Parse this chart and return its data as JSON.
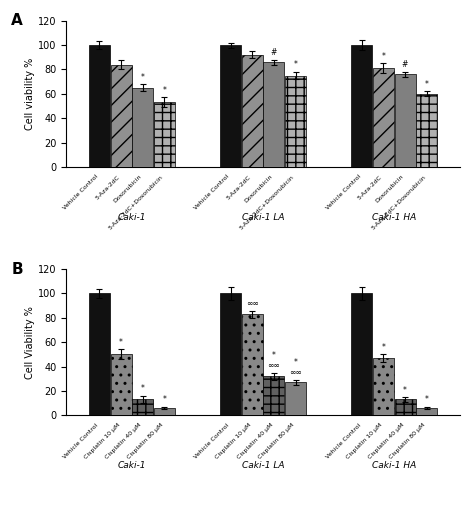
{
  "panel_A": {
    "title": "A",
    "ylabel": "Cell viability %",
    "ylim": [
      0,
      120
    ],
    "yticks": [
      0,
      20,
      40,
      60,
      80,
      100,
      120
    ],
    "groups": [
      "Caki-1",
      "Caki-1 LA",
      "Caki-1 HA"
    ],
    "categories": [
      "Vehicle Control",
      "5-Aza-2dC",
      "Doxorubicin",
      "5-Aza-2dC+Doxorubicin"
    ],
    "values": [
      [
        100,
        84,
        65,
        53
      ],
      [
        100,
        92,
        86,
        75
      ],
      [
        100,
        81,
        76,
        60
      ]
    ],
    "errors": [
      [
        3,
        4,
        3,
        4
      ],
      [
        2,
        3,
        2,
        3
      ],
      [
        4,
        4,
        2,
        2
      ]
    ],
    "significance": [
      [
        "",
        "",
        "*",
        "*"
      ],
      [
        "",
        "",
        "#",
        "*"
      ],
      [
        "",
        "*",
        "#",
        "*"
      ]
    ],
    "bar_colors": [
      "#111111",
      "#909090",
      "#808080",
      "#b0b0b0"
    ],
    "bar_hatches": [
      "",
      "//",
      "",
      "++"
    ],
    "bar_edge_colors": [
      "#111111",
      "#111111",
      "#111111",
      "#111111"
    ]
  },
  "panel_B": {
    "title": "B",
    "ylabel": "Cell Viability %",
    "ylim": [
      0,
      120
    ],
    "yticks": [
      0,
      20,
      40,
      60,
      80,
      100,
      120
    ],
    "groups": [
      "Caki-1",
      "Caki-1 LA",
      "Caki-1 HA"
    ],
    "categories": [
      "Vehicle Control",
      "Cisplatin 10 μM",
      "Cisplatin 40 μM",
      "Cisplatin 80 μM"
    ],
    "values": [
      [
        100,
        50,
        13,
        6
      ],
      [
        100,
        83,
        32,
        27
      ],
      [
        100,
        47,
        13,
        6
      ]
    ],
    "errors": [
      [
        4,
        4,
        3,
        1
      ],
      [
        5,
        3,
        3,
        2
      ],
      [
        5,
        3,
        2,
        1
      ]
    ],
    "significance_lines": [
      [
        "",
        "*",
        "*",
        "*"
      ],
      [
        "",
        "∞∞",
        "*\n∞∞",
        "*\n∞∞"
      ],
      [
        "",
        "*",
        "*",
        "*"
      ]
    ],
    "bar_colors": [
      "#111111",
      "#888888",
      "#606060",
      "#808080"
    ],
    "bar_hatches": [
      "",
      "..",
      "++",
      ""
    ],
    "bar_edge_colors": [
      "#111111",
      "#111111",
      "#111111",
      "#111111"
    ]
  }
}
